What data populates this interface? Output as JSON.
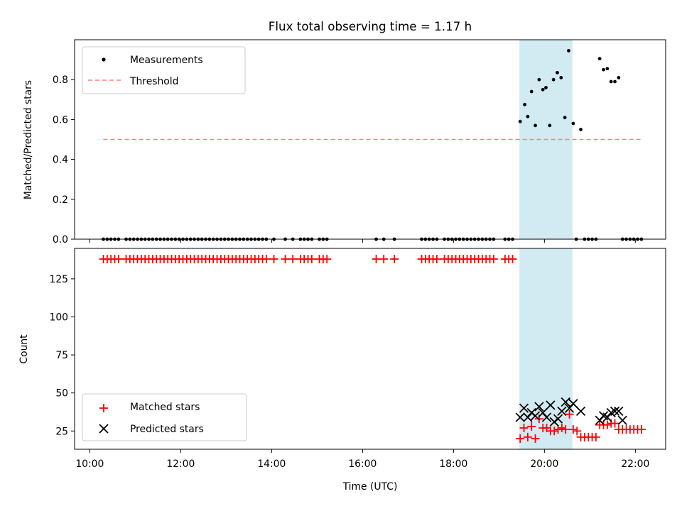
{
  "chart_data": [
    {
      "type": "scatter",
      "title": "Flux total observing time = 1.17 h",
      "xlabel": "",
      "ylabel": "Matched/Predicted stars",
      "ylim": [
        0,
        1.0
      ],
      "yticks": [
        "0.0",
        "0.2",
        "0.4",
        "0.6",
        "0.8"
      ],
      "xlim": [
        "09:40",
        "22:40"
      ],
      "highlight_span": [
        "19:27",
        "20:37"
      ],
      "highlight_color": "#add8e6",
      "legend": {
        "position": "upper-left",
        "entries": [
          "Measurements",
          "Threshold"
        ]
      },
      "threshold": {
        "name": "Threshold",
        "value": 0.5,
        "x_range": [
          "10:18",
          "22:08"
        ],
        "color": "#ff7f7f",
        "style": "dashed"
      },
      "series": [
        {
          "name": "Measurements",
          "color": "#000000",
          "marker": "dot",
          "points": [
            [
              "10:18",
              0
            ],
            [
              "10:23",
              0
            ],
            [
              "10:28",
              0
            ],
            [
              "10:33",
              0
            ],
            [
              "10:38",
              0
            ],
            [
              "10:48",
              0
            ],
            [
              "10:53",
              0
            ],
            [
              "10:58",
              0
            ],
            [
              "11:03",
              0
            ],
            [
              "11:08",
              0
            ],
            [
              "11:13",
              0
            ],
            [
              "11:18",
              0
            ],
            [
              "11:23",
              0
            ],
            [
              "11:28",
              0
            ],
            [
              "11:33",
              0
            ],
            [
              "11:38",
              0
            ],
            [
              "11:43",
              0
            ],
            [
              "11:48",
              0
            ],
            [
              "11:53",
              0
            ],
            [
              "11:58",
              0
            ],
            [
              "12:03",
              0
            ],
            [
              "12:08",
              0
            ],
            [
              "12:13",
              0
            ],
            [
              "12:18",
              0
            ],
            [
              "12:23",
              0
            ],
            [
              "12:28",
              0
            ],
            [
              "12:33",
              0
            ],
            [
              "12:38",
              0
            ],
            [
              "12:43",
              0
            ],
            [
              "12:48",
              0
            ],
            [
              "12:53",
              0
            ],
            [
              "12:58",
              0
            ],
            [
              "13:03",
              0
            ],
            [
              "13:08",
              0
            ],
            [
              "13:13",
              0
            ],
            [
              "13:18",
              0
            ],
            [
              "13:23",
              0
            ],
            [
              "13:28",
              0
            ],
            [
              "13:33",
              0
            ],
            [
              "13:38",
              0
            ],
            [
              "13:43",
              0
            ],
            [
              "13:48",
              0
            ],
            [
              "13:53",
              0
            ],
            [
              "14:03",
              0
            ],
            [
              "14:18",
              0
            ],
            [
              "14:28",
              0
            ],
            [
              "14:38",
              0
            ],
            [
              "14:43",
              0
            ],
            [
              "14:48",
              0
            ],
            [
              "14:53",
              0
            ],
            [
              "15:03",
              0
            ],
            [
              "15:08",
              0
            ],
            [
              "15:13",
              0
            ],
            [
              "16:18",
              0
            ],
            [
              "16:28",
              0
            ],
            [
              "16:42",
              0
            ],
            [
              "17:18",
              0
            ],
            [
              "17:23",
              0
            ],
            [
              "17:28",
              0
            ],
            [
              "17:33",
              0
            ],
            [
              "17:38",
              0
            ],
            [
              "17:48",
              0
            ],
            [
              "17:53",
              0
            ],
            [
              "17:58",
              0
            ],
            [
              "18:03",
              0
            ],
            [
              "18:08",
              0
            ],
            [
              "18:13",
              0
            ],
            [
              "18:18",
              0
            ],
            [
              "18:23",
              0
            ],
            [
              "18:28",
              0
            ],
            [
              "18:33",
              0
            ],
            [
              "18:38",
              0
            ],
            [
              "18:43",
              0
            ],
            [
              "18:48",
              0
            ],
            [
              "18:53",
              0
            ],
            [
              "19:08",
              0
            ],
            [
              "19:13",
              0
            ],
            [
              "19:18",
              0
            ],
            [
              "19:28",
              0.59
            ],
            [
              "19:34",
              0.675
            ],
            [
              "19:38",
              0.615
            ],
            [
              "19:43",
              0.74
            ],
            [
              "19:48",
              0.57
            ],
            [
              "19:53",
              0.8
            ],
            [
              "19:58",
              0.75
            ],
            [
              "20:02",
              0.76
            ],
            [
              "20:07",
              0.57
            ],
            [
              "20:12",
              0.8
            ],
            [
              "20:17",
              0.835
            ],
            [
              "20:22",
              0.81
            ],
            [
              "20:27",
              0.61
            ],
            [
              "20:32",
              0.945
            ],
            [
              "20:38",
              0.58
            ],
            [
              "20:42",
              0
            ],
            [
              "20:48",
              0.55
            ],
            [
              "20:53",
              0
            ],
            [
              "20:58",
              0
            ],
            [
              "21:03",
              0
            ],
            [
              "21:08",
              0
            ],
            [
              "21:13",
              0.905
            ],
            [
              "21:18",
              0.85
            ],
            [
              "21:23",
              0.855
            ],
            [
              "21:28",
              0.79
            ],
            [
              "21:33",
              0.79
            ],
            [
              "21:38",
              0.81
            ],
            [
              "21:43",
              0
            ],
            [
              "21:48",
              0
            ],
            [
              "21:53",
              0
            ],
            [
              "21:58",
              0
            ],
            [
              "22:03",
              0
            ],
            [
              "22:08",
              0
            ]
          ]
        }
      ]
    },
    {
      "type": "scatter",
      "title": "",
      "xlabel": "Time (UTC)",
      "ylabel": "Count",
      "ylim": [
        13,
        145
      ],
      "yticks": [
        "25",
        "50",
        "75",
        "100",
        "125"
      ],
      "xlim": [
        "09:40",
        "22:40"
      ],
      "xticks": [
        "10:00",
        "12:00",
        "14:00",
        "16:00",
        "18:00",
        "20:00",
        "22:00"
      ],
      "highlight_span": [
        "19:27",
        "20:37"
      ],
      "highlight_color": "#add8e6",
      "legend": {
        "position": "lower-left",
        "entries": [
          "Matched stars",
          "Predicted stars"
        ]
      },
      "series": [
        {
          "name": "Matched stars",
          "color": "#ff0000",
          "marker": "plus",
          "points": [
            [
              "10:18",
              138
            ],
            [
              "10:23",
              138
            ],
            [
              "10:28",
              138
            ],
            [
              "10:33",
              138
            ],
            [
              "10:38",
              138
            ],
            [
              "10:48",
              138
            ],
            [
              "10:53",
              138
            ],
            [
              "10:58",
              138
            ],
            [
              "11:03",
              138
            ],
            [
              "11:08",
              138
            ],
            [
              "11:13",
              138
            ],
            [
              "11:18",
              138
            ],
            [
              "11:23",
              138
            ],
            [
              "11:28",
              138
            ],
            [
              "11:33",
              138
            ],
            [
              "11:38",
              138
            ],
            [
              "11:43",
              138
            ],
            [
              "11:48",
              138
            ],
            [
              "11:53",
              138
            ],
            [
              "11:58",
              138
            ],
            [
              "12:03",
              138
            ],
            [
              "12:08",
              138
            ],
            [
              "12:13",
              138
            ],
            [
              "12:18",
              138
            ],
            [
              "12:23",
              138
            ],
            [
              "12:28",
              138
            ],
            [
              "12:33",
              138
            ],
            [
              "12:38",
              138
            ],
            [
              "12:43",
              138
            ],
            [
              "12:48",
              138
            ],
            [
              "12:53",
              138
            ],
            [
              "12:58",
              138
            ],
            [
              "13:03",
              138
            ],
            [
              "13:08",
              138
            ],
            [
              "13:13",
              138
            ],
            [
              "13:18",
              138
            ],
            [
              "13:23",
              138
            ],
            [
              "13:28",
              138
            ],
            [
              "13:33",
              138
            ],
            [
              "13:38",
              138
            ],
            [
              "13:43",
              138
            ],
            [
              "13:48",
              138
            ],
            [
              "13:53",
              138
            ],
            [
              "14:03",
              138
            ],
            [
              "14:18",
              138
            ],
            [
              "14:28",
              138
            ],
            [
              "14:38",
              138
            ],
            [
              "14:43",
              138
            ],
            [
              "14:48",
              138
            ],
            [
              "14:53",
              138
            ],
            [
              "15:03",
              138
            ],
            [
              "15:08",
              138
            ],
            [
              "15:13",
              138
            ],
            [
              "16:18",
              138
            ],
            [
              "16:28",
              138
            ],
            [
              "16:42",
              138
            ],
            [
              "17:18",
              138
            ],
            [
              "17:23",
              138
            ],
            [
              "17:28",
              138
            ],
            [
              "17:33",
              138
            ],
            [
              "17:38",
              138
            ],
            [
              "17:48",
              138
            ],
            [
              "17:53",
              138
            ],
            [
              "17:58",
              138
            ],
            [
              "18:03",
              138
            ],
            [
              "18:08",
              138
            ],
            [
              "18:13",
              138
            ],
            [
              "18:18",
              138
            ],
            [
              "18:23",
              138
            ],
            [
              "18:28",
              138
            ],
            [
              "18:33",
              138
            ],
            [
              "18:38",
              138
            ],
            [
              "18:43",
              138
            ],
            [
              "18:48",
              138
            ],
            [
              "18:53",
              138
            ],
            [
              "19:08",
              138
            ],
            [
              "19:13",
              138
            ],
            [
              "19:18",
              138
            ],
            [
              "19:28",
              20
            ],
            [
              "19:33",
              27
            ],
            [
              "19:38",
              21
            ],
            [
              "19:43",
              28
            ],
            [
              "19:48",
              20
            ],
            [
              "19:53",
              33
            ],
            [
              "19:58",
              27
            ],
            [
              "20:03",
              27
            ],
            [
              "20:08",
              25
            ],
            [
              "20:13",
              25
            ],
            [
              "20:18",
              26
            ],
            [
              "20:23",
              27
            ],
            [
              "20:28",
              26
            ],
            [
              "20:33",
              36
            ],
            [
              "20:38",
              26
            ],
            [
              "20:43",
              25
            ],
            [
              "20:48",
              21
            ],
            [
              "20:53",
              21
            ],
            [
              "20:58",
              21
            ],
            [
              "21:03",
              21
            ],
            [
              "21:08",
              21
            ],
            [
              "21:13",
              29
            ],
            [
              "21:18",
              29
            ],
            [
              "21:23",
              29
            ],
            [
              "21:28",
              30
            ],
            [
              "21:33",
              30
            ],
            [
              "21:38",
              26
            ],
            [
              "21:43",
              26
            ],
            [
              "21:48",
              26
            ],
            [
              "21:53",
              26
            ],
            [
              "21:58",
              26
            ],
            [
              "22:03",
              26
            ],
            [
              "22:08",
              26
            ]
          ]
        },
        {
          "name": "Predicted stars",
          "color": "#000000",
          "marker": "x",
          "points": [
            [
              "19:28",
              34
            ],
            [
              "19:33",
              40
            ],
            [
              "19:38",
              34
            ],
            [
              "19:43",
              37
            ],
            [
              "19:48",
              35
            ],
            [
              "19:53",
              41
            ],
            [
              "19:58",
              37
            ],
            [
              "20:03",
              34
            ],
            [
              "20:08",
              42
            ],
            [
              "20:13",
              31
            ],
            [
              "20:18",
              33
            ],
            [
              "20:23",
              38
            ],
            [
              "20:28",
              44
            ],
            [
              "20:33",
              40
            ],
            [
              "20:38",
              43
            ],
            [
              "20:48",
              38
            ],
            [
              "21:13",
              32
            ],
            [
              "21:18",
              35
            ],
            [
              "21:23",
              34
            ],
            [
              "21:28",
              37
            ],
            [
              "21:33",
              38
            ],
            [
              "21:38",
              38
            ],
            [
              "21:43",
              32
            ]
          ]
        }
      ]
    }
  ]
}
